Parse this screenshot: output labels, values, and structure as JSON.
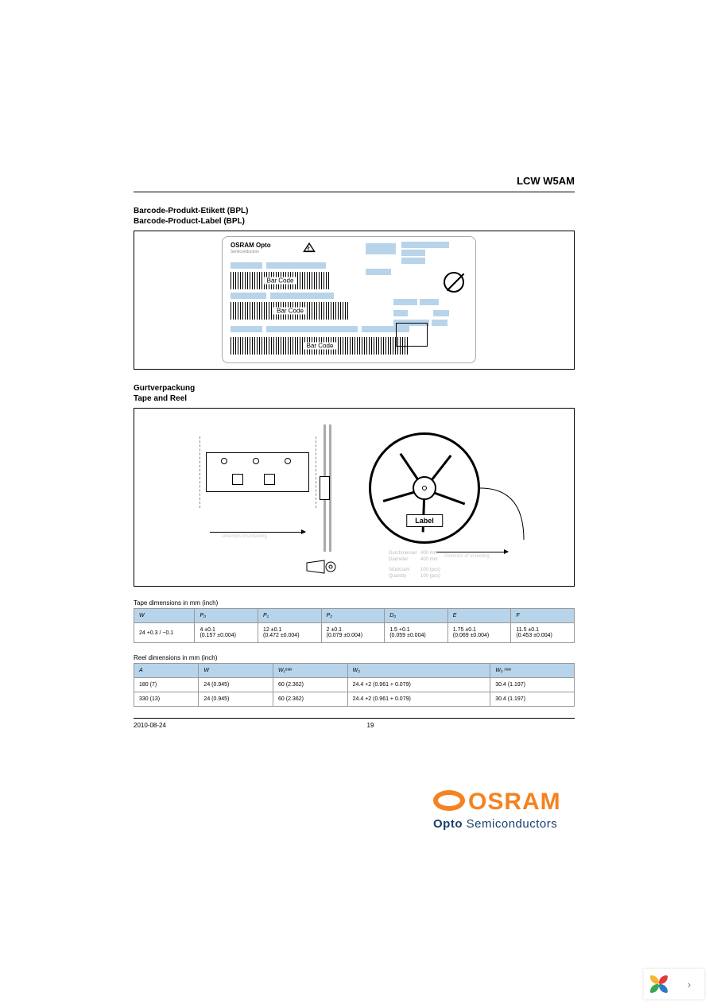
{
  "product_code": "LCW W5AM",
  "colors": {
    "header_bg": "#b8d4ea",
    "osram_orange": "#f58220",
    "osram_blue": "#1a3e6f",
    "border": "#999999",
    "background": "#ffffff"
  },
  "section1": {
    "title_de": "Barcode-Produkt-Etikett (BPL)",
    "title_en": "Barcode-Product-Label (BPL)",
    "label": {
      "brand": "OSRAM Opto",
      "brand_sub": "Semiconductors",
      "barcode_text": "Bar Code"
    }
  },
  "section2": {
    "title_de": "Gurtverpackung",
    "title_en": "Tape and Reel",
    "reel_label": "Label",
    "info": {
      "diameter_de": "Durchmesser",
      "diameter_de_val": "400 mm",
      "diameter_en": "Diameter",
      "diameter_en_val": "400 mm",
      "quantity_de": "Stückzahl",
      "quantity_de_val": "100 (pcs)",
      "quantity_en": "Quantity",
      "quantity_en_val": "100 (pcs)"
    }
  },
  "tape_table": {
    "caption": "Tape dimensions in mm (inch)",
    "headers": [
      "W",
      "P₀",
      "P₁",
      "P₂",
      "D₀",
      "E",
      "F"
    ],
    "row": {
      "W": {
        "main": "24 +0.3 / −0.1",
        "sub": ""
      },
      "P0": {
        "main": "4  ±0.1",
        "sub": "(0.157  ±0.004)"
      },
      "P1": {
        "main": "12  ±0.1",
        "sub": "(0.472  ±0.004)"
      },
      "P2": {
        "main": "2  ±0.1",
        "sub": "(0.079  ±0.004)"
      },
      "D0": {
        "main": "1.5  +0.1",
        "sub": "(0.059  ±0.004)"
      },
      "E": {
        "main": "1.75  ±0.1",
        "sub": "(0.069  ±0.004)"
      },
      "F": {
        "main": "11.5  ±0.1",
        "sub": "(0.453  ±0.004)"
      }
    }
  },
  "reel_table": {
    "caption": "Reel dimensions in mm (inch)",
    "headers": [
      "A",
      "W",
      "W₁ᵐᵃˣ",
      "W₂",
      "W₃ ᵐᵃˣ"
    ],
    "rows": [
      {
        "A": "180 (7)",
        "W": "24 (0.945)",
        "W1": "60 (2.362)",
        "W2": "24.4  +2 (0.961 + 0.079)",
        "W3": "30.4 (1.197)"
      },
      {
        "A": "330 (13)",
        "W": "24 (0.945)",
        "W1": "60 (2.362)",
        "W2": "24.4  +2 (0.961 + 0.079)",
        "W3": "30.4 (1.197)"
      }
    ]
  },
  "footer": {
    "date": "2010-08-24",
    "page": "19"
  },
  "logo": {
    "brand": "OSRAM",
    "sub_bold": "Opto",
    "sub_thin": "Semiconductors"
  },
  "corner": {
    "petal_colors": [
      "#f4b731",
      "#e23a3a",
      "#3aa655",
      "#2b7bbf"
    ]
  }
}
